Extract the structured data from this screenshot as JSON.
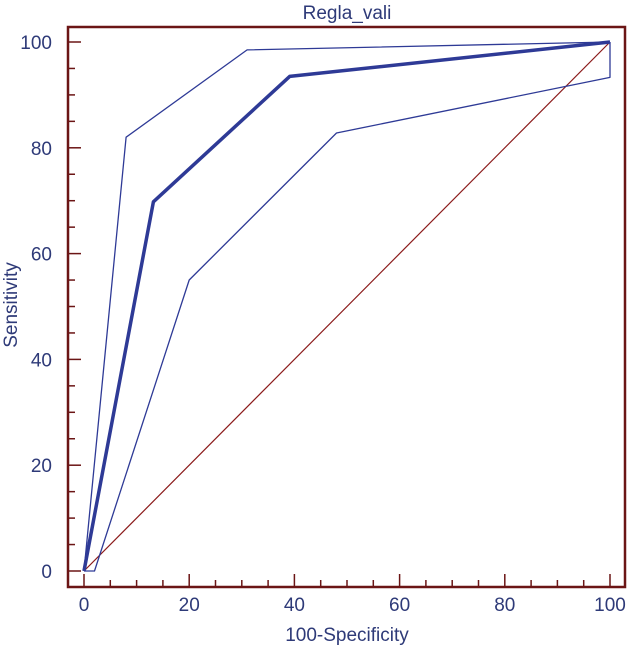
{
  "chart_data": {
    "type": "line",
    "title": "Regla_vali",
    "xlabel": "100-Specificity",
    "ylabel": "Sensitivity",
    "xlim": [
      0,
      100
    ],
    "ylim": [
      0,
      100
    ],
    "x_ticks": [
      "0",
      "20",
      "40",
      "60",
      "80",
      "100"
    ],
    "y_ticks": [
      "0",
      "20",
      "40",
      "60",
      "80",
      "100"
    ],
    "grid": false,
    "legend": "none",
    "colors": {
      "roc": "#2e3a96",
      "ci": "#2e3a96",
      "diagonal": "#8b1a1a",
      "frame": "#6b1515",
      "text": "#2e3a78"
    },
    "series": [
      {
        "x": [
          0,
          13.2,
          39.1,
          100
        ],
        "y": [
          0,
          69.8,
          93.5,
          100
        ],
        "style": "thick"
      },
      {
        "x": [
          0,
          8,
          31,
          100
        ],
        "y": [
          0,
          82,
          98.5,
          100
        ],
        "style": "thin"
      },
      {
        "x": [
          0,
          2,
          20,
          48,
          100,
          100
        ],
        "y": [
          0,
          0,
          55,
          82.8,
          93.3,
          100
        ],
        "style": "thin"
      },
      {
        "x": [
          0,
          100
        ],
        "y": [
          0,
          100
        ],
        "style": "diagonal"
      }
    ]
  }
}
